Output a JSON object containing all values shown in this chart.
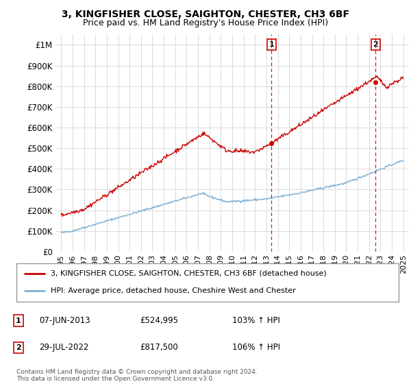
{
  "title": "3, KINGFISHER CLOSE, SAIGHTON, CHESTER, CH3 6BF",
  "subtitle": "Price paid vs. HM Land Registry's House Price Index (HPI)",
  "hpi_label": "HPI: Average price, detached house, Cheshire West and Chester",
  "property_label": "3, KINGFISHER CLOSE, SAIGHTON, CHESTER, CH3 6BF (detached house)",
  "hpi_color": "#7bafd4",
  "property_color": "#cc0000",
  "marker1_x": 2013.44,
  "marker1_y": 524995,
  "marker1_label": "07-JUN-2013",
  "marker1_price": "£524,995",
  "marker1_hpi": "103% ↑ HPI",
  "marker2_x": 2022.57,
  "marker2_y": 817500,
  "marker2_label": "29-JUL-2022",
  "marker2_price": "£817,500",
  "marker2_hpi": "106% ↑ HPI",
  "ylim": [
    0,
    1050000
  ],
  "xlim": [
    1994.5,
    2025.5
  ],
  "yticks": [
    0,
    100000,
    200000,
    300000,
    400000,
    500000,
    600000,
    700000,
    800000,
    900000,
    1000000
  ],
  "ytick_labels": [
    "£0",
    "£100K",
    "£200K",
    "£300K",
    "£400K",
    "£500K",
    "£600K",
    "£700K",
    "£800K",
    "£900K",
    "£1M"
  ],
  "xticks": [
    1995,
    1996,
    1997,
    1998,
    1999,
    2000,
    2001,
    2002,
    2003,
    2004,
    2005,
    2006,
    2007,
    2008,
    2009,
    2010,
    2011,
    2012,
    2013,
    2014,
    2015,
    2016,
    2017,
    2018,
    2019,
    2020,
    2021,
    2022,
    2023,
    2024,
    2025
  ],
  "footer": "Contains HM Land Registry data © Crown copyright and database right 2024.\nThis data is licensed under the Open Government Licence v3.0.",
  "background_color": "#ffffff",
  "grid_color": "#cccccc"
}
